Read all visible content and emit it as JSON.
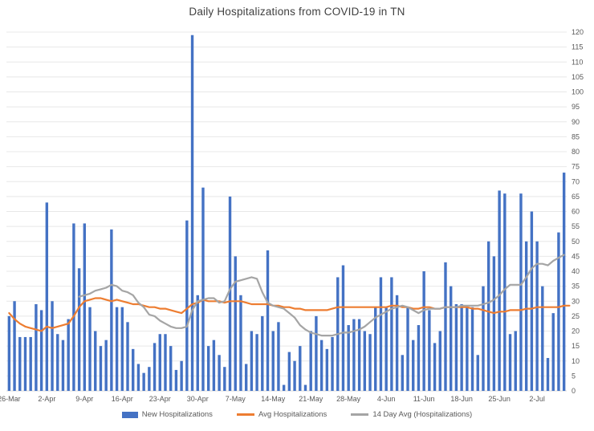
{
  "chart_data": {
    "type": "composite",
    "title": "Daily Hospitalizations from COVID-19 in TN",
    "xlabel": "",
    "ylabel": "",
    "ylim": [
      0,
      120
    ],
    "y_step": 5,
    "y_ticks": [
      0,
      5,
      10,
      15,
      20,
      25,
      30,
      35,
      40,
      45,
      50,
      55,
      60,
      65,
      70,
      75,
      80,
      85,
      90,
      95,
      100,
      105,
      110,
      115,
      120
    ],
    "y_axis_side": "right",
    "grid": true,
    "n_points": 104,
    "x_tick_labels": [
      "26-Mar",
      "2-Apr",
      "9-Apr",
      "16-Apr",
      "23-Apr",
      "30-Apr",
      "7-May",
      "14-May",
      "21-May",
      "28-May",
      "4-Jun",
      "11-Jun",
      "18-Jun",
      "25-Jun",
      "2-Jul"
    ],
    "x_tick_interval_days": 7,
    "legend_position": "bottom",
    "colors": {
      "bar_blue": "#4472C4",
      "line_orange": "#ED7D31",
      "line_gray": "#A5A5A5",
      "gridline": "#E8E8E8",
      "axis_line": "#D9D9D9",
      "tick_text": "#595959",
      "title_text": "#404040"
    },
    "series": [
      {
        "name": "New Hospitalizations",
        "type": "bar",
        "color": "#4472C4",
        "values": [
          25,
          30,
          18,
          18,
          18,
          29,
          27,
          63,
          30,
          19,
          17,
          24,
          56,
          41,
          56,
          28,
          20,
          15,
          17,
          54,
          28,
          28,
          23,
          14,
          9,
          6,
          8,
          16,
          19,
          19,
          15,
          7,
          10,
          57,
          119,
          32,
          68,
          15,
          17,
          12,
          8,
          65,
          45,
          32,
          9,
          20,
          19,
          25,
          47,
          20,
          23,
          2,
          13,
          10,
          15,
          2,
          20,
          25,
          17,
          14,
          18,
          38,
          42,
          22,
          24,
          24,
          20,
          19,
          28,
          38,
          28,
          38,
          32,
          12,
          28,
          17,
          22,
          40,
          27,
          16,
          20,
          43,
          35,
          29,
          29,
          28,
          28,
          12,
          35,
          50,
          45,
          67,
          66,
          19,
          20,
          66,
          50,
          60,
          50,
          35,
          11,
          26,
          53,
          73
        ]
      },
      {
        "name": "Avg Hospitalizations",
        "type": "line",
        "color": "#ED7D31",
        "values": [
          26,
          24,
          22.5,
          21.5,
          21,
          20.5,
          20,
          21.5,
          21,
          21.5,
          22,
          22.5,
          25,
          28,
          30,
          30.5,
          31,
          31,
          30.5,
          30,
          30.5,
          30,
          29.5,
          29,
          29,
          28.5,
          28,
          28,
          27.5,
          27.5,
          27,
          26.5,
          26,
          27.5,
          29,
          29.5,
          30.5,
          30,
          30,
          30,
          29.5,
          30,
          30,
          30,
          29.5,
          29,
          29,
          29,
          29,
          28.5,
          28.5,
          28,
          28,
          27.5,
          27.5,
          27,
          27,
          27,
          27,
          27,
          27.5,
          28,
          28,
          28,
          28,
          28,
          28,
          28,
          28,
          28,
          28,
          28.5,
          28.5,
          28,
          28,
          27.5,
          27.5,
          28,
          28,
          27.5,
          27.5,
          28,
          28,
          28,
          28,
          28,
          27.5,
          27.5,
          27,
          26.5,
          26,
          26.5,
          26.5,
          27,
          27,
          27,
          27.5,
          27.5,
          28,
          28,
          28,
          28,
          28,
          28.5,
          28.5
        ]
      },
      {
        "name": "14 Day Avg (Hospitalizations)",
        "type": "line",
        "color": "#A5A5A5",
        "values": [
          null,
          null,
          null,
          null,
          null,
          null,
          null,
          null,
          null,
          null,
          null,
          null,
          null,
          31.5,
          32,
          32.5,
          33.5,
          34,
          34.5,
          35.5,
          35,
          33.5,
          33,
          32,
          29.5,
          28,
          25.5,
          25,
          23.5,
          22.5,
          21.5,
          21,
          21,
          21.5,
          27,
          30,
          30.5,
          31,
          31,
          29.5,
          30,
          34,
          36.5,
          37,
          37.5,
          38,
          37.5,
          33,
          29.5,
          28.5,
          28,
          27.5,
          26,
          24.5,
          22,
          20.5,
          19.5,
          19,
          18.5,
          18.5,
          18.5,
          19,
          19.5,
          19.5,
          20,
          20.5,
          21.5,
          23,
          24.5,
          25.5,
          26.5,
          27.5,
          28,
          28.5,
          28,
          27,
          26,
          27,
          27.5,
          27.5,
          27.5,
          28,
          28,
          28,
          28.5,
          28.5,
          28.5,
          28.5,
          29,
          29.5,
          30.5,
          32,
          34,
          35.5,
          35.5,
          35.5,
          38,
          41,
          42.5,
          42.5,
          42,
          43.5,
          44.5,
          45.5
        ]
      }
    ]
  }
}
